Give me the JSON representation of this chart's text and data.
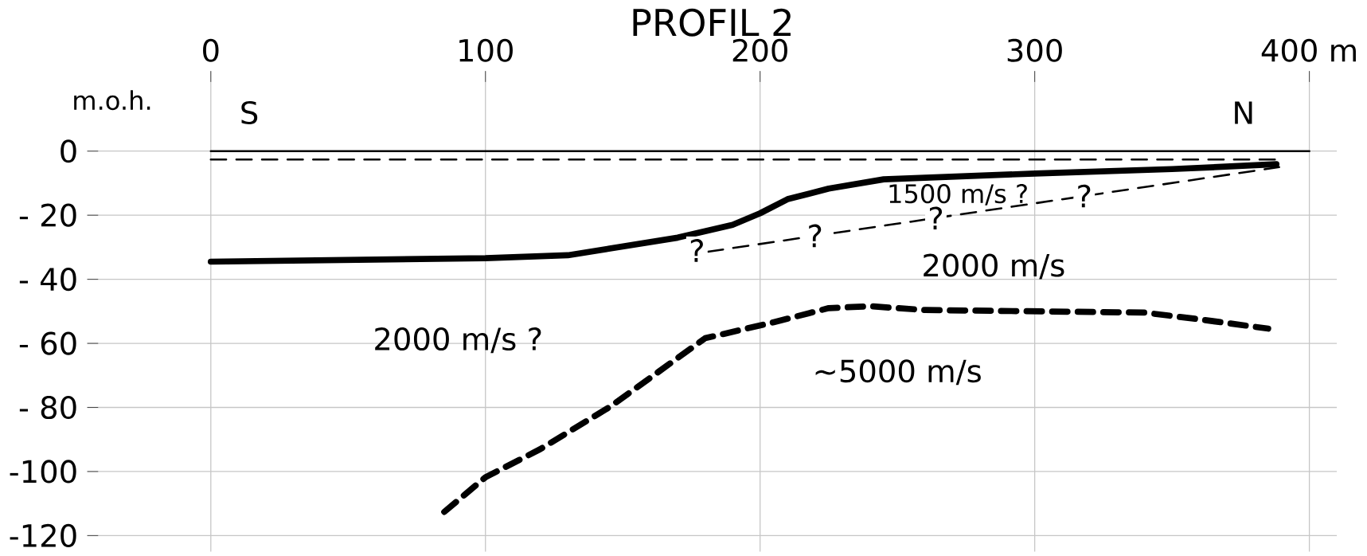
{
  "chart_data": {
    "type": "line",
    "title": "PROFIL 2",
    "ylabel": "m.o.h.",
    "xlim": [
      -45,
      410
    ],
    "ylim": [
      -125,
      25
    ],
    "xticks": [
      0,
      100,
      200,
      300,
      {
        "value": 400,
        "label": "400 m"
      }
    ],
    "yticks": [
      0,
      {
        "value": -20,
        "label": "- 20"
      },
      {
        "value": -40,
        "label": "- 40"
      },
      {
        "value": -60,
        "label": "- 60"
      },
      {
        "value": -80,
        "label": "- 80"
      },
      -100,
      -120
    ],
    "grid": true,
    "series": [
      {
        "color": "#000000",
        "line_style": "solid",
        "x": [
          0,
          400
        ],
        "values": [
          0,
          0
        ]
      },
      {
        "color": "#000000",
        "line_style": "dashed",
        "x": [
          0,
          388
        ],
        "values": [
          -2.6,
          -2.6
        ]
      },
      {
        "color": "#000000",
        "line_style": "solid",
        "x": [
          0,
          100,
          130,
          170,
          190,
          200,
          210,
          225,
          245,
          300,
          350,
          388
        ],
        "values": [
          -34.5,
          -33.4,
          -32.5,
          -27,
          -23,
          -19.4,
          -15,
          -11.7,
          -8.8,
          -7,
          -5.6,
          -4.1
        ]
      },
      {
        "color": "#000000",
        "line_style": "dashed",
        "x": [
          181,
          389
        ],
        "values": [
          -31.4,
          -5
        ]
      },
      {
        "color": "#000000",
        "line_style": "dashed",
        "x": [
          85,
          100,
          120,
          145,
          180,
          205,
          225,
          240,
          260,
          300,
          340,
          360,
          385
        ],
        "values": [
          -112.6,
          -101.8,
          -93,
          -80,
          -58.4,
          -53.4,
          -49,
          -48.4,
          -49.6,
          -50,
          -50.4,
          -52.5,
          -55.4
        ]
      }
    ],
    "annotations": [
      "S",
      "N",
      "1500 m/s ?",
      "2000 m/s",
      "2000 m/s ?",
      "∼5000 m/s",
      {
        "text": "?",
        "x": 177,
        "y": -31
      },
      {
        "text": "?",
        "x": 220,
        "y": -26.4
      },
      {
        "text": "?",
        "x": 264,
        "y": -20.9
      },
      {
        "text": "?",
        "x": 318,
        "y": -14
      }
    ]
  }
}
